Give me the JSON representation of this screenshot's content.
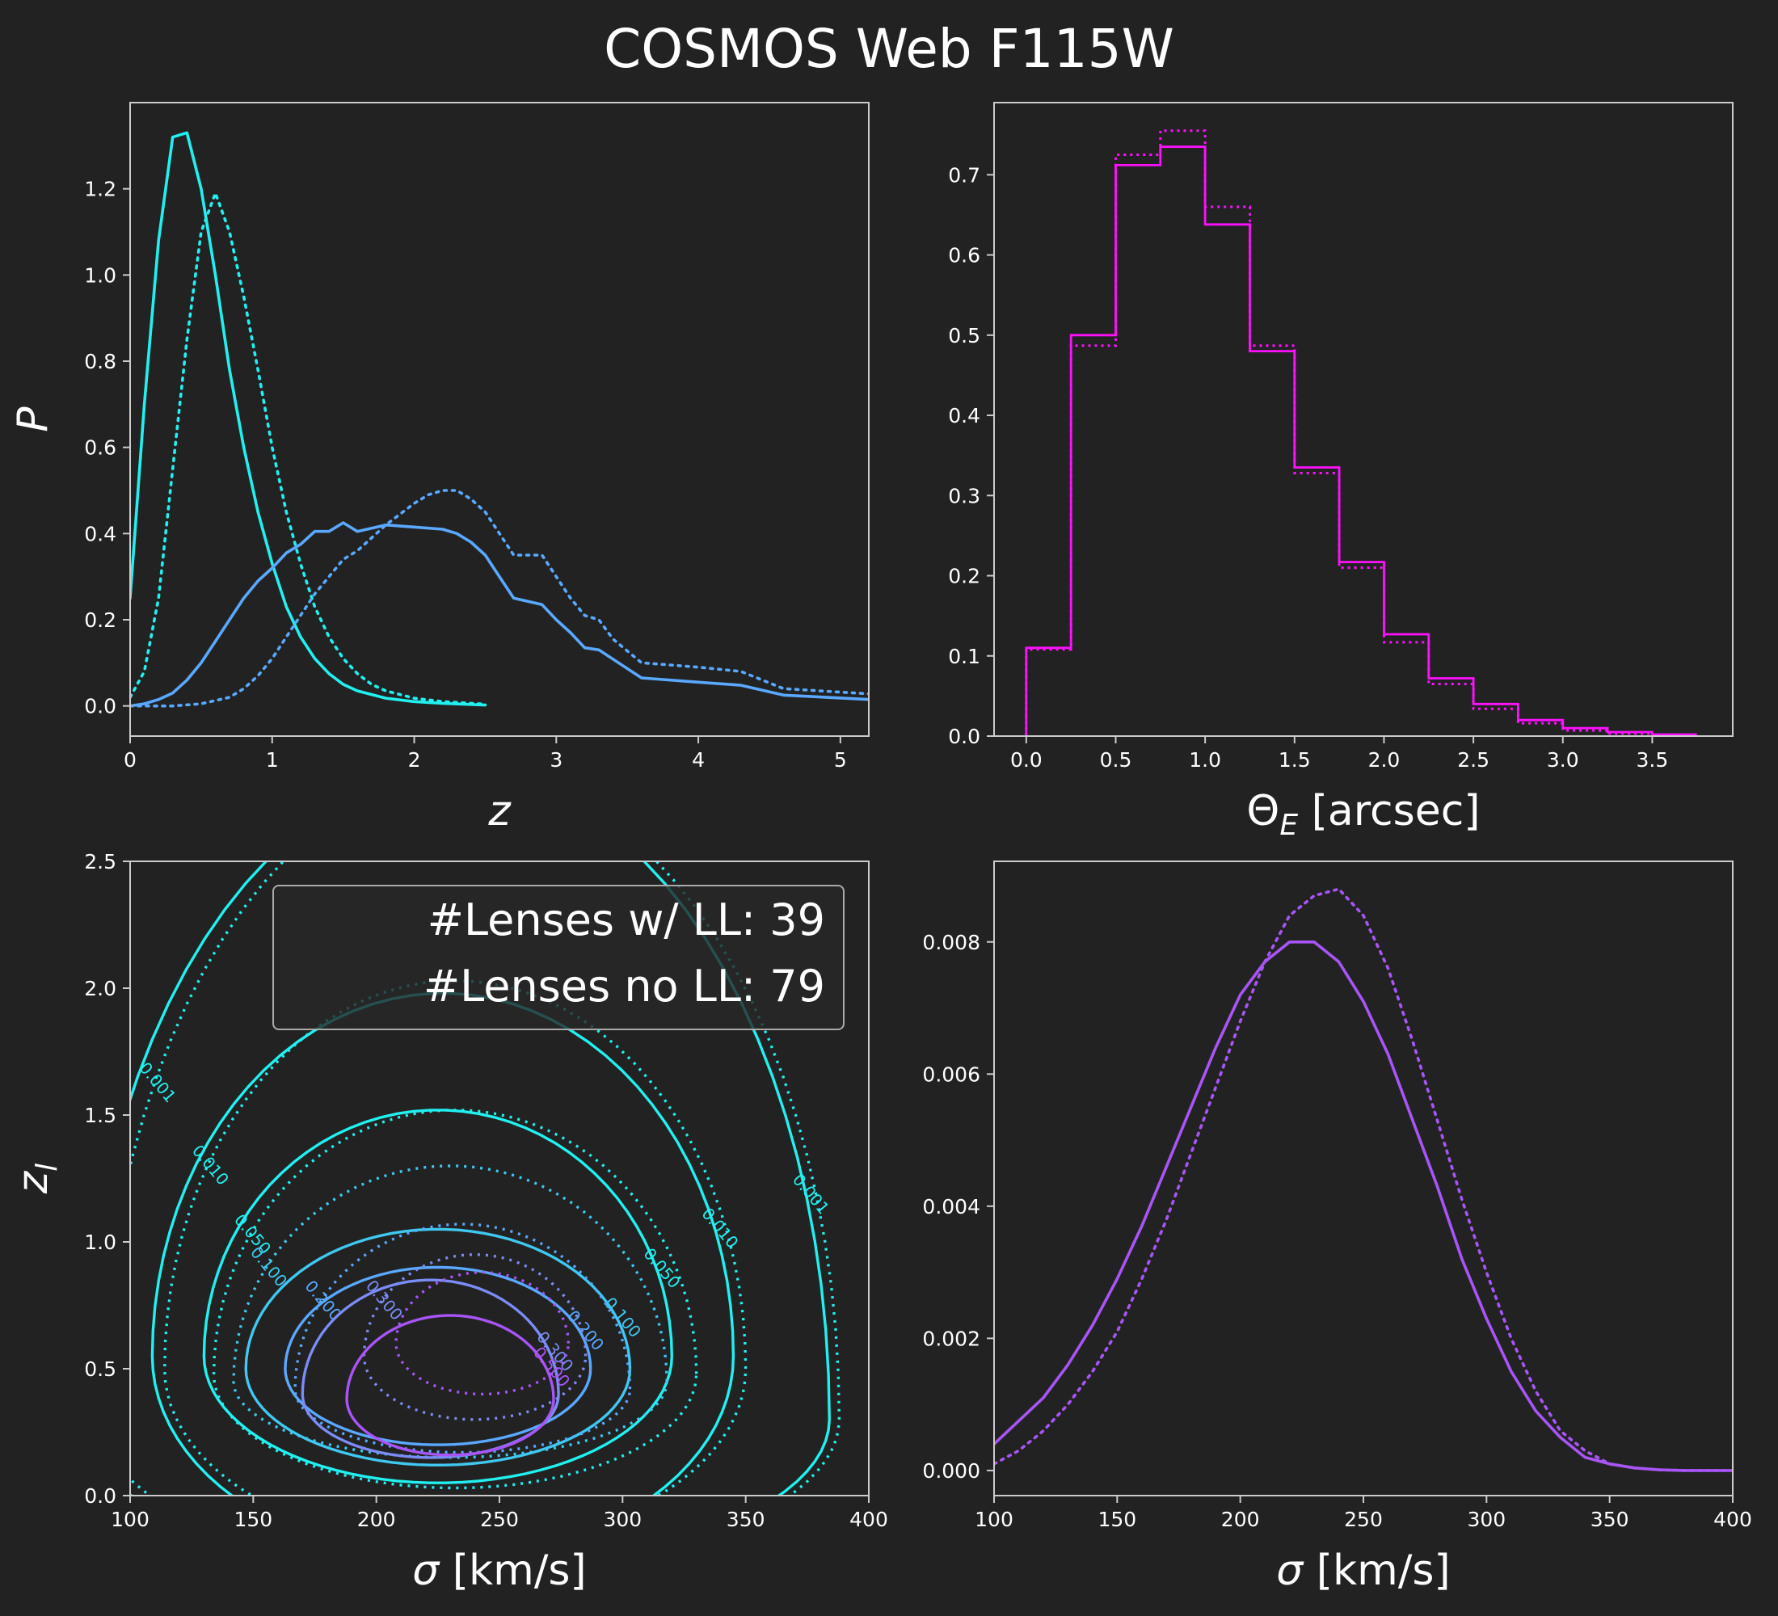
{
  "title": "COSMOS Web F115W",
  "colors": {
    "background": "#222222",
    "frame": "#cccccc",
    "text": "#ffffff",
    "cyan": "#22f0f0",
    "blue": "#5aa8ff",
    "magenta": "#ff10ff",
    "purple": "#a855f7"
  },
  "legend": {
    "line1": "#Lenses w/ LL: 39",
    "line2": "#Lenses no LL: 79"
  },
  "chart_data": [
    {
      "id": "top-left",
      "type": "line",
      "xlabel": "z",
      "ylabel": "P",
      "xlim": [
        0,
        5.2
      ],
      "ylim": [
        -0.07,
        1.4
      ],
      "xticks": [
        0,
        1,
        2,
        3,
        4,
        5
      ],
      "yticks": [
        0.0,
        0.2,
        0.4,
        0.6,
        0.8,
        1.0,
        1.2
      ],
      "tick_decimals_y": 1,
      "tick_decimals_x": 0,
      "series": [
        {
          "color": "#22f0f0",
          "style": "solid",
          "x": [
            0,
            0.1,
            0.2,
            0.3,
            0.4,
            0.5,
            0.6,
            0.7,
            0.8,
            0.9,
            1.0,
            1.1,
            1.2,
            1.3,
            1.4,
            1.5,
            1.6,
            1.8,
            2.0,
            2.2,
            2.5
          ],
          "y": [
            0.25,
            0.7,
            1.08,
            1.32,
            1.33,
            1.2,
            1.0,
            0.78,
            0.6,
            0.45,
            0.33,
            0.23,
            0.16,
            0.11,
            0.075,
            0.05,
            0.035,
            0.018,
            0.01,
            0.006,
            0.002
          ]
        },
        {
          "color": "#22f0f0",
          "style": "dotted",
          "x": [
            0,
            0.1,
            0.2,
            0.3,
            0.4,
            0.5,
            0.6,
            0.7,
            0.8,
            0.9,
            1.0,
            1.1,
            1.2,
            1.3,
            1.4,
            1.5,
            1.6,
            1.7,
            1.8,
            2.0,
            2.2,
            2.5
          ],
          "y": [
            0.02,
            0.08,
            0.25,
            0.55,
            0.85,
            1.1,
            1.19,
            1.1,
            0.95,
            0.78,
            0.6,
            0.45,
            0.33,
            0.23,
            0.16,
            0.11,
            0.075,
            0.05,
            0.035,
            0.018,
            0.01,
            0.004
          ]
        },
        {
          "color": "#5aa8ff",
          "style": "solid",
          "x": [
            0,
            0.1,
            0.2,
            0.3,
            0.4,
            0.5,
            0.6,
            0.7,
            0.8,
            0.9,
            1.0,
            1.1,
            1.2,
            1.3,
            1.4,
            1.5,
            1.6,
            1.8,
            2.0,
            2.2,
            2.3,
            2.4,
            2.5,
            2.6,
            2.7,
            2.9,
            3.0,
            3.1,
            3.2,
            3.3,
            3.6,
            4.0,
            4.3,
            4.6,
            5.2
          ],
          "y": [
            0,
            0.005,
            0.015,
            0.03,
            0.06,
            0.1,
            0.15,
            0.2,
            0.25,
            0.29,
            0.32,
            0.355,
            0.375,
            0.405,
            0.405,
            0.425,
            0.405,
            0.42,
            0.415,
            0.41,
            0.4,
            0.38,
            0.35,
            0.3,
            0.25,
            0.235,
            0.2,
            0.17,
            0.135,
            0.13,
            0.065,
            0.055,
            0.048,
            0.025,
            0.015
          ]
        },
        {
          "color": "#5aa8ff",
          "style": "dotted",
          "x": [
            0,
            0.3,
            0.5,
            0.7,
            0.8,
            0.9,
            1.0,
            1.1,
            1.2,
            1.3,
            1.4,
            1.5,
            1.6,
            1.8,
            2.0,
            2.1,
            2.2,
            2.3,
            2.4,
            2.5,
            2.6,
            2.7,
            2.8,
            2.9,
            3.0,
            3.1,
            3.2,
            3.3,
            3.4,
            3.6,
            4.0,
            4.3,
            4.6,
            5.2
          ],
          "y": [
            0,
            0,
            0.005,
            0.02,
            0.04,
            0.07,
            0.11,
            0.16,
            0.21,
            0.26,
            0.3,
            0.34,
            0.36,
            0.42,
            0.47,
            0.49,
            0.5,
            0.5,
            0.48,
            0.45,
            0.4,
            0.35,
            0.35,
            0.35,
            0.3,
            0.25,
            0.21,
            0.2,
            0.155,
            0.1,
            0.09,
            0.08,
            0.04,
            0.028
          ]
        }
      ]
    },
    {
      "id": "top-right",
      "type": "bar",
      "xlabel": "ΘE [arcsec]",
      "xlim": [
        -0.18,
        3.95
      ],
      "ylim": [
        0,
        0.79
      ],
      "xticks": [
        0.0,
        0.5,
        1.0,
        1.5,
        2.0,
        2.5,
        3.0,
        3.5
      ],
      "yticks": [
        0.0,
        0.1,
        0.2,
        0.3,
        0.4,
        0.5,
        0.6,
        0.7
      ],
      "tick_decimals_y": 1,
      "tick_decimals_x": 1,
      "bin_edges": [
        0,
        0.25,
        0.5,
        0.75,
        1.0,
        1.25,
        1.5,
        1.75,
        2.0,
        2.25,
        2.5,
        2.75,
        3.0,
        3.25,
        3.5,
        3.75
      ],
      "series": [
        {
          "color": "#ff10ff",
          "style": "solid",
          "values": [
            0.11,
            0.5,
            0.712,
            0.735,
            0.638,
            0.48,
            0.335,
            0.217,
            0.127,
            0.072,
            0.04,
            0.02,
            0.01,
            0.005,
            0.002
          ]
        },
        {
          "color": "#ff10ff",
          "style": "dotted",
          "values": [
            0.108,
            0.487,
            0.725,
            0.755,
            0.66,
            0.487,
            0.328,
            0.21,
            0.117,
            0.065,
            0.034,
            0.016,
            0.007,
            0.003,
            0.001
          ]
        }
      ]
    },
    {
      "id": "bottom-left",
      "type": "contour",
      "xlabel": "σ [km/s]",
      "ylabel": "zl",
      "xlim": [
        100,
        400
      ],
      "ylim": [
        0,
        2.5
      ],
      "xticks": [
        100,
        150,
        200,
        250,
        300,
        350,
        400
      ],
      "yticks": [
        0.0,
        0.5,
        1.0,
        1.5,
        2.0,
        2.5
      ],
      "tick_decimals_y": 1,
      "tick_decimals_x": 0,
      "contours": [
        {
          "level": "0.001",
          "color": "#22f0f0",
          "style": "solid",
          "cx": 232,
          "cy": 0.3,
          "ax": 152,
          "ayTop": 2.55,
          "ayBot": 0.6,
          "label": "0.001"
        },
        {
          "level": "0.001",
          "color": "#22f0f0",
          "style": "dotted",
          "cx": 238,
          "cy": 0.3,
          "ax": 150,
          "ayTop": 2.55,
          "ayBot": 0.6,
          "label": "0.001"
        },
        {
          "level": "0.010",
          "color": "#22f0f0",
          "style": "solid",
          "cx": 227,
          "cy": 0.55,
          "ax": 118,
          "ayTop": 1.43,
          "ayBot": 0.8,
          "label": "0.010"
        },
        {
          "level": "0.010",
          "color": "#22f0f0",
          "style": "dotted",
          "cx": 232,
          "cy": 0.5,
          "ax": 118,
          "ayTop": 1.53,
          "ayBot": 0.7,
          "label": "0.010"
        },
        {
          "level": "0.050",
          "color": "#22f0f0",
          "style": "solid",
          "cx": 225,
          "cy": 0.55,
          "ax": 95,
          "ayTop": 0.97,
          "ayBot": 0.5,
          "label": "0.050"
        },
        {
          "level": "0.050",
          "color": "#22f0f0",
          "style": "dotted",
          "cx": 232,
          "cy": 0.48,
          "ax": 98,
          "ayTop": 1.04,
          "ayBot": 0.45,
          "label": "0.050"
        },
        {
          "level": "0.100",
          "color": "#40c8f0",
          "style": "solid",
          "cx": 225,
          "cy": 0.5,
          "ax": 78,
          "ayTop": 0.55,
          "ayBot": 0.38,
          "label": "0.100"
        },
        {
          "level": "0.100",
          "color": "#40c8f0",
          "style": "dotted",
          "cx": 230,
          "cy": 0.45,
          "ax": 88,
          "ayTop": 0.85,
          "ayBot": 0.3,
          "label": "0.100"
        },
        {
          "level": "0.200",
          "color": "#5aa8ff",
          "style": "solid",
          "cx": 225,
          "cy": 0.5,
          "ax": 62,
          "ayTop": 0.4,
          "ayBot": 0.3,
          "label": "0.200"
        },
        {
          "level": "0.200",
          "color": "#5aa8ff",
          "style": "dotted",
          "cx": 235,
          "cy": 0.42,
          "ax": 68,
          "ayTop": 0.65,
          "ayBot": 0.25,
          "label": "0.200"
        },
        {
          "level": "0.300",
          "color": "#7b8cf5",
          "style": "solid",
          "cx": 222,
          "cy": 0.4,
          "ax": 52,
          "ayTop": 0.45,
          "ayBot": 0.25,
          "label": "0.300"
        },
        {
          "level": "0.300",
          "color": "#7b8cf5",
          "style": "dotted",
          "cx": 240,
          "cy": 0.55,
          "ax": 45,
          "ayTop": 0.4,
          "ayBot": 0.25,
          "label": "0.300"
        },
        {
          "level": "0.500",
          "color": "#a855f7",
          "style": "solid",
          "cx": 230,
          "cy": 0.38,
          "ax": 42,
          "ayTop": 0.33,
          "ayBot": 0.22,
          "label": "0.500"
        },
        {
          "level": "0.500",
          "color": "#a855f7",
          "style": "dotted",
          "cx": 243,
          "cy": 0.6,
          "ax": 35,
          "ayTop": 0.28,
          "ayBot": 0.2,
          "label": ""
        }
      ]
    },
    {
      "id": "bottom-right",
      "type": "line",
      "xlabel": "σ [km/s]",
      "xlim": [
        100,
        400
      ],
      "ylim": [
        -0.00038,
        0.00922
      ],
      "xticks": [
        100,
        150,
        200,
        250,
        300,
        350,
        400
      ],
      "yticks": [
        0.0,
        0.002,
        0.004,
        0.006,
        0.008
      ],
      "tick_decimals_y": 3,
      "tick_decimals_x": 0,
      "series": [
        {
          "color": "#a855f7",
          "style": "solid",
          "x": [
            100,
            120,
            130,
            140,
            150,
            160,
            170,
            180,
            190,
            200,
            210,
            220,
            230,
            240,
            250,
            260,
            270,
            280,
            290,
            300,
            310,
            320,
            330,
            340,
            350,
            360,
            370,
            380,
            390,
            400
          ],
          "y": [
            0.0004,
            0.0011,
            0.0016,
            0.0022,
            0.0029,
            0.0037,
            0.0046,
            0.0055,
            0.0064,
            0.0072,
            0.0077,
            0.008,
            0.008,
            0.0077,
            0.0071,
            0.0063,
            0.0053,
            0.0043,
            0.0032,
            0.0023,
            0.0015,
            0.0009,
            0.0005,
            0.0002,
            0.0001,
            4e-05,
            1e-05,
            0,
            0,
            0
          ]
        },
        {
          "color": "#a855f7",
          "style": "dotted",
          "x": [
            100,
            110,
            120,
            130,
            140,
            150,
            160,
            170,
            180,
            190,
            200,
            210,
            220,
            230,
            240,
            250,
            260,
            270,
            280,
            290,
            300,
            310,
            320,
            330,
            340,
            350,
            360,
            370,
            380,
            400
          ],
          "y": [
            0.0001,
            0.0003,
            0.0006,
            0.001,
            0.0015,
            0.0021,
            0.0029,
            0.0038,
            0.0048,
            0.0058,
            0.0068,
            0.0077,
            0.0084,
            0.0087,
            0.0088,
            0.0084,
            0.0076,
            0.0065,
            0.0053,
            0.0041,
            0.003,
            0.002,
            0.0012,
            0.0006,
            0.0003,
            0.0001,
            4e-05,
            1e-05,
            0,
            0
          ]
        }
      ]
    }
  ]
}
